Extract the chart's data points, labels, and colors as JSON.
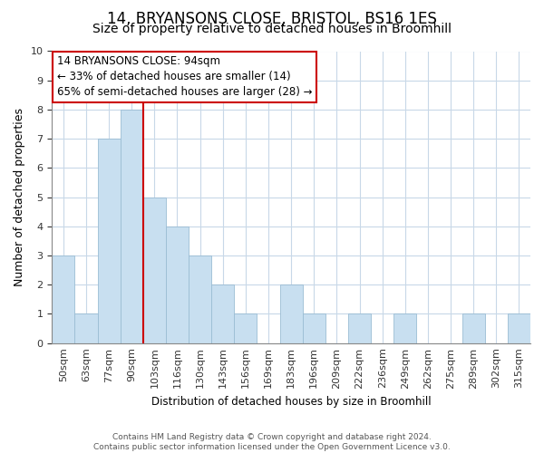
{
  "title": "14, BRYANSONS CLOSE, BRISTOL, BS16 1ES",
  "subtitle": "Size of property relative to detached houses in Broomhill",
  "xlabel": "Distribution of detached houses by size in Broomhill",
  "ylabel": "Number of detached properties",
  "bin_labels": [
    "50sqm",
    "63sqm",
    "77sqm",
    "90sqm",
    "103sqm",
    "116sqm",
    "130sqm",
    "143sqm",
    "156sqm",
    "169sqm",
    "183sqm",
    "196sqm",
    "209sqm",
    "222sqm",
    "236sqm",
    "249sqm",
    "262sqm",
    "275sqm",
    "289sqm",
    "302sqm",
    "315sqm"
  ],
  "bar_heights": [
    3,
    1,
    7,
    8,
    5,
    4,
    3,
    2,
    1,
    0,
    2,
    1,
    0,
    1,
    0,
    1,
    0,
    0,
    1,
    0,
    1
  ],
  "bar_color": "#c8dff0",
  "bar_edge_color": "#9bbdd4",
  "property_line_index": 4,
  "property_line_color": "#cc0000",
  "annotation_title": "14 BRYANSONS CLOSE: 94sqm",
  "annotation_line1": "← 33% of detached houses are smaller (14)",
  "annotation_line2": "65% of semi-detached houses are larger (28) →",
  "annotation_box_facecolor": "#ffffff",
  "annotation_box_edgecolor": "#cc0000",
  "ylim": [
    0,
    10
  ],
  "yticks": [
    0,
    1,
    2,
    3,
    4,
    5,
    6,
    7,
    8,
    9,
    10
  ],
  "footer_line1": "Contains HM Land Registry data © Crown copyright and database right 2024.",
  "footer_line2": "Contains public sector information licensed under the Open Government Licence v3.0.",
  "background_color": "#ffffff",
  "grid_color": "#c8d8e8",
  "title_fontsize": 12,
  "subtitle_fontsize": 10,
  "annotation_fontsize": 8.5,
  "axis_label_fontsize": 8.5,
  "tick_fontsize": 8,
  "footer_fontsize": 6.5,
  "ylabel_fontsize": 9
}
